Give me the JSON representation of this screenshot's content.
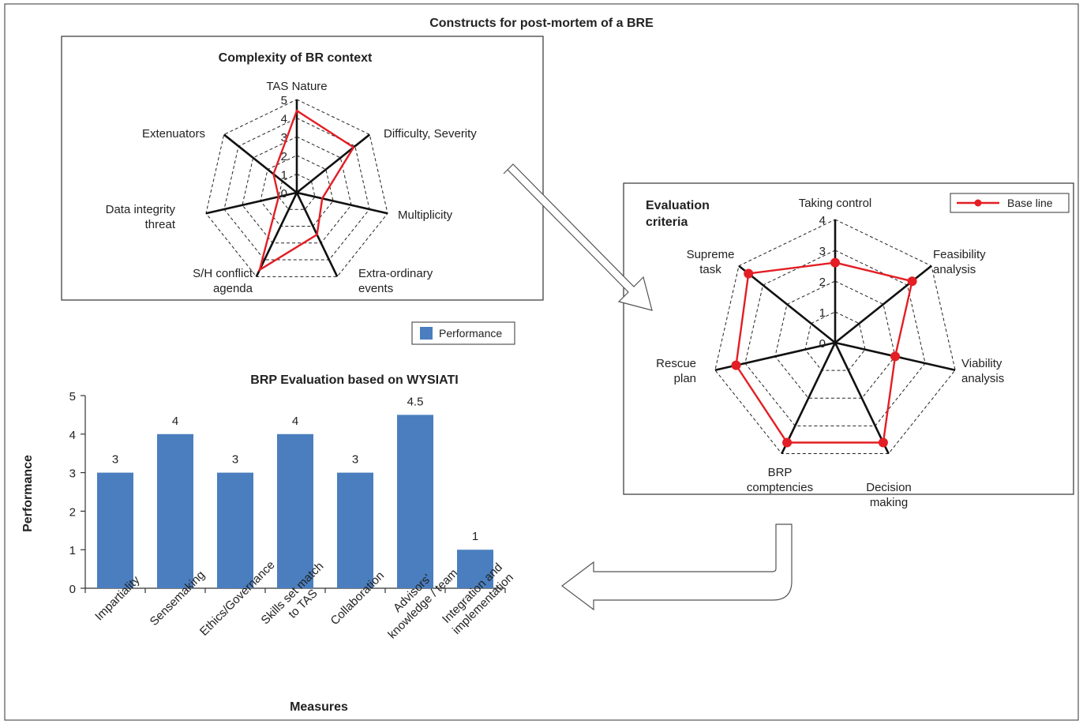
{
  "page": {
    "title": "Constructs for post-mortem of a BRE"
  },
  "colors": {
    "red": "#e31e24",
    "bar": "#4a7ebf",
    "axis": "#111111"
  },
  "chart_data": [
    {
      "type": "radar",
      "title": "Complexity of BR context",
      "range": [
        0,
        5
      ],
      "ticks": [
        "0",
        "1",
        "2",
        "3",
        "4",
        "5"
      ],
      "axes": [
        {
          "label": [
            "TAS Nature"
          ],
          "value": 4.4
        },
        {
          "label": [
            "Difficulty, Severity"
          ],
          "value": 3.9
        },
        {
          "label": [
            "Multiplicity"
          ],
          "value": 1.4
        },
        {
          "label": [
            "Extra-ordinary",
            "events"
          ],
          "value": 2.5
        },
        {
          "label": [
            "S/H conflict",
            "agenda"
          ],
          "value": 4.6
        },
        {
          "label": [
            "Data integrity",
            "threat"
          ],
          "value": 1.0
        },
        {
          "label": [
            "Extenuators"
          ],
          "value": 1.6
        }
      ],
      "series_color": "#e31e24",
      "markers": false
    },
    {
      "type": "radar",
      "title": [
        "Evaluation",
        "criteria"
      ],
      "range": [
        0,
        4
      ],
      "ticks": [
        "0",
        "1",
        "2",
        "3",
        "4"
      ],
      "legend": {
        "label": "Base line",
        "position": "top-right"
      },
      "axes": [
        {
          "label": [
            "Taking control"
          ],
          "value": 2.6
        },
        {
          "label": [
            "Feasibility",
            "analysis"
          ],
          "value": 3.2
        },
        {
          "label": [
            "Viability",
            "analysis"
          ],
          "value": 2.0
        },
        {
          "label": [
            "Decision",
            "making"
          ],
          "value": 3.6
        },
        {
          "label": [
            "BRP",
            "comptencies"
          ],
          "value": 3.6
        },
        {
          "label": [
            "Rescue",
            "plan"
          ],
          "value": 3.3
        },
        {
          "label": [
            "Supreme",
            "task"
          ],
          "value": 3.6
        }
      ],
      "series_color": "#e31e24",
      "markers": true
    },
    {
      "type": "bar",
      "title": "BRP Evaluation based on WYSIATI",
      "xlabel": "Measures",
      "ylabel": "Performance",
      "ylim": [
        0,
        5
      ],
      "yticks": [
        "0",
        "1",
        "2",
        "3",
        "4",
        "5"
      ],
      "legend": {
        "label": "Performance",
        "position": "top-right"
      },
      "categories": [
        [
          "Impartiality"
        ],
        [
          "Sensemaking"
        ],
        [
          "Ethics/Governance"
        ],
        [
          "Skills set match",
          "to TAS"
        ],
        [
          "Collaboration"
        ],
        [
          "Advisors'",
          "knowledge / team"
        ],
        [
          "Integration and",
          "implementation"
        ]
      ],
      "values": [
        3,
        4,
        3,
        4,
        3,
        4.5,
        1
      ],
      "value_labels": [
        "3",
        "4",
        "3",
        "4",
        "3",
        "4.5",
        "1"
      ]
    }
  ]
}
